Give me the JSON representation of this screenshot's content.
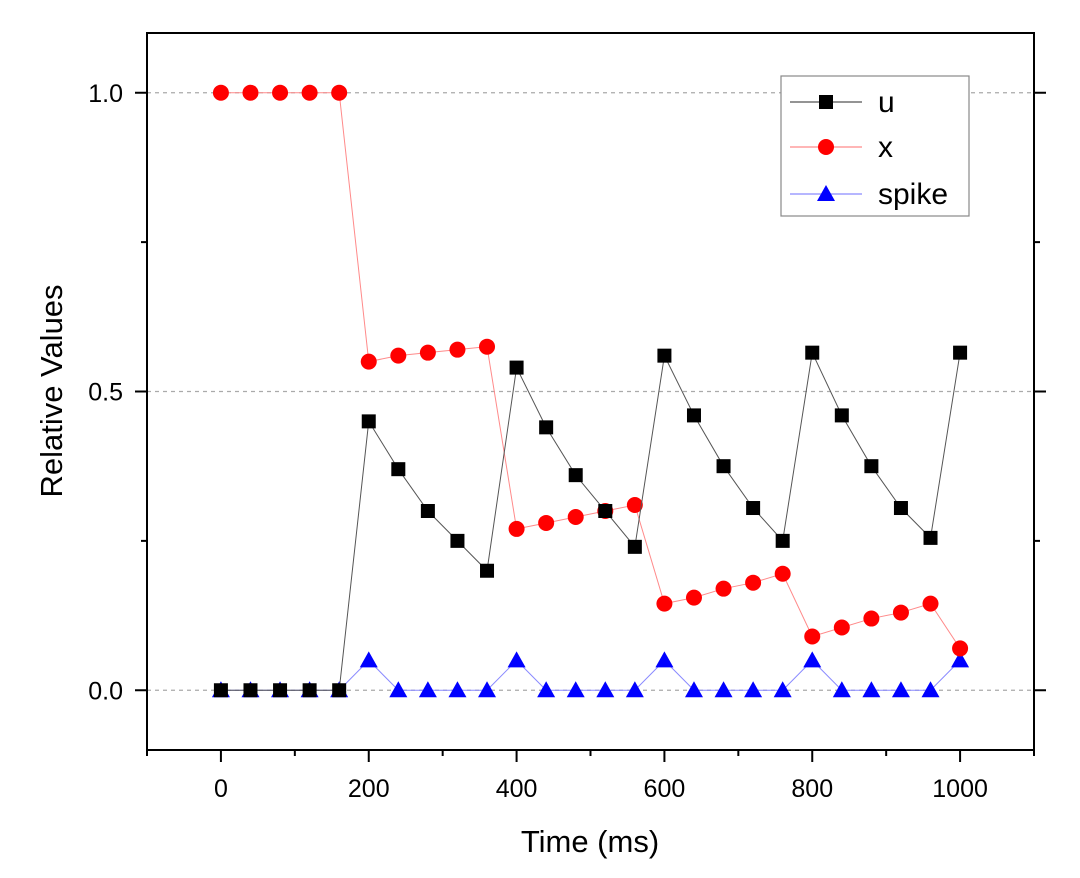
{
  "chart_data": {
    "type": "line",
    "title": "",
    "xlabel": "Time (ms)",
    "ylabel": "Relative Values",
    "xlim": [
      -100,
      1100
    ],
    "ylim": [
      -0.1,
      1.1
    ],
    "x_ticks": [
      0,
      200,
      400,
      600,
      800,
      1000
    ],
    "x_tick_labels": [
      "0",
      "200",
      "400",
      "600",
      "800",
      "1000"
    ],
    "y_ticks": [
      0.0,
      0.5,
      1.0
    ],
    "y_tick_labels": [
      "0.0",
      "0.5",
      "1.0"
    ],
    "grid": "horizontal dashed at major y ticks",
    "legend_position": "top-right",
    "x": [
      0,
      40,
      80,
      120,
      160,
      200,
      240,
      280,
      320,
      360,
      400,
      440,
      480,
      520,
      560,
      600,
      640,
      680,
      720,
      760,
      800,
      840,
      880,
      920,
      960,
      1000
    ],
    "series": [
      {
        "name": "u",
        "marker": "square",
        "color": "#000000",
        "line_color": "#555555",
        "values": [
          0,
          0,
          0,
          0,
          0,
          0.45,
          0.37,
          0.3,
          0.25,
          0.2,
          0.54,
          0.44,
          0.36,
          0.3,
          0.24,
          0.56,
          0.46,
          0.375,
          0.305,
          0.25,
          0.565,
          0.46,
          0.375,
          0.305,
          0.255,
          0.565
        ]
      },
      {
        "name": "x",
        "marker": "circle",
        "color": "#ff0000",
        "line_color": "#ff8a8a",
        "values": [
          1,
          1,
          1,
          1,
          1,
          0.55,
          0.56,
          0.565,
          0.57,
          0.575,
          0.27,
          0.28,
          0.29,
          0.3,
          0.31,
          0.145,
          0.155,
          0.17,
          0.18,
          0.195,
          0.09,
          0.105,
          0.12,
          0.13,
          0.145,
          0.07
        ]
      },
      {
        "name": "spike",
        "marker": "triangle",
        "color": "#0000ff",
        "line_color": "#8a8aff",
        "values": [
          0,
          0,
          0,
          0,
          0,
          0.05,
          0,
          0,
          0,
          0,
          0.05,
          0,
          0,
          0,
          0,
          0.05,
          0,
          0,
          0,
          0,
          0.05,
          0,
          0,
          0,
          0,
          0.05
        ]
      }
    ]
  }
}
